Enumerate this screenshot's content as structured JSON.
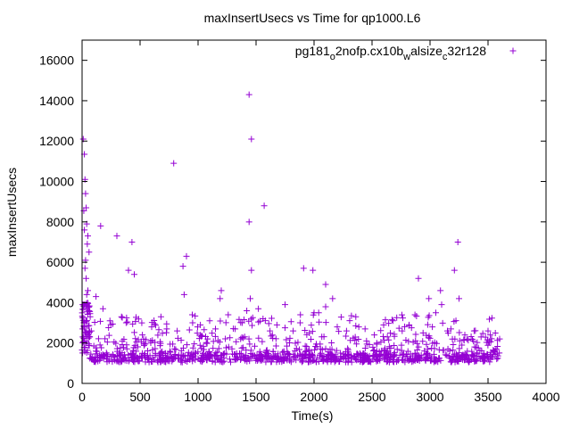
{
  "chart_data": {
    "type": "scatter",
    "title": "maxInsertUsecs vs Time for qp1000.L6",
    "xlabel": "Time(s)",
    "ylabel": "maxInsertUsecs",
    "xlim": [
      0,
      4000
    ],
    "ylim": [
      0,
      17000
    ],
    "xticks": [
      0,
      500,
      1000,
      1500,
      2000,
      2500,
      3000,
      3500,
      4000
    ],
    "yticks": [
      0,
      2000,
      4000,
      6000,
      8000,
      10000,
      12000,
      14000,
      16000
    ],
    "xtick_labels": [
      "0",
      "500",
      "1000",
      "1500",
      "2000",
      "2500",
      "3000",
      "3500",
      "4000"
    ],
    "ytick_labels": [
      "0",
      "2000",
      "4000",
      "6000",
      "8000",
      "10000",
      "12000",
      "14000",
      "16000"
    ],
    "legend_position": "top-right",
    "marker": "plus",
    "color": "#9400d3",
    "series": [
      {
        "name": "pg181_o2nofp.cx10b_walsize_c32r128",
        "legend_parts": [
          {
            "text": "pg181",
            "shift": "base"
          },
          {
            "text": "o",
            "shift": "sub"
          },
          {
            "text": "2nofp.cx10b",
            "shift": "base"
          },
          {
            "text": "w",
            "shift": "sub"
          },
          {
            "text": "alsize",
            "shift": "base"
          },
          {
            "text": "c",
            "shift": "sub"
          },
          {
            "text": "32r128",
            "shift": "base"
          }
        ],
        "points": [
          [
            10,
            12100
          ],
          [
            20,
            11350
          ],
          [
            25,
            10100
          ],
          [
            30,
            9400
          ],
          [
            35,
            8700
          ],
          [
            15,
            8550
          ],
          [
            40,
            7900
          ],
          [
            20,
            7600
          ],
          [
            50,
            7300
          ],
          [
            45,
            6900
          ],
          [
            60,
            6500
          ],
          [
            30,
            6100
          ],
          [
            25,
            5700
          ],
          [
            35,
            5200
          ],
          [
            50,
            4600
          ],
          [
            40,
            4400
          ],
          [
            20,
            3900
          ],
          [
            60,
            3600
          ],
          [
            70,
            3300
          ],
          [
            15,
            3000
          ],
          [
            5,
            2700
          ],
          [
            80,
            2600
          ],
          [
            30,
            2500
          ],
          [
            10,
            2300
          ],
          [
            160,
            7800
          ],
          [
            300,
            7300
          ],
          [
            430,
            7000
          ],
          [
            400,
            5600
          ],
          [
            450,
            5400
          ],
          [
            790,
            10900
          ],
          [
            900,
            6300
          ],
          [
            870,
            5800
          ],
          [
            880,
            4400
          ],
          [
            1440,
            14300
          ],
          [
            1460,
            12100
          ],
          [
            1440,
            8000
          ],
          [
            1570,
            8800
          ],
          [
            1460,
            5600
          ],
          [
            1200,
            4600
          ],
          [
            1190,
            4200
          ],
          [
            1450,
            4200
          ],
          [
            1420,
            3600
          ],
          [
            1520,
            3700
          ],
          [
            1750,
            3900
          ],
          [
            1910,
            5700
          ],
          [
            1990,
            5600
          ],
          [
            2100,
            4900
          ],
          [
            2160,
            4200
          ],
          [
            2000,
            3500
          ],
          [
            2040,
            3500
          ],
          [
            2100,
            3800
          ],
          [
            2900,
            5200
          ],
          [
            2870,
            3400
          ],
          [
            2990,
            4200
          ],
          [
            3090,
            4600
          ],
          [
            3210,
            5600
          ],
          [
            3240,
            7000
          ],
          [
            3250,
            4200
          ],
          [
            3050,
            3500
          ],
          [
            3100,
            3900
          ],
          [
            3150,
            2600
          ],
          [
            3500,
            2600
          ],
          [
            3520,
            2400
          ],
          [
            3600,
            2200
          ],
          [
            3570,
            1700
          ],
          [
            3580,
            1500
          ],
          [
            120,
            4300
          ],
          [
            180,
            3700
          ],
          [
            240,
            3100
          ],
          [
            340,
            3300
          ],
          [
            380,
            3000
          ],
          [
            520,
            2400
          ],
          [
            600,
            2800
          ],
          [
            680,
            3300
          ],
          [
            730,
            2700
          ],
          [
            820,
            2600
          ],
          [
            950,
            3400
          ],
          [
            1020,
            2900
          ],
          [
            1100,
            3100
          ],
          [
            1150,
            2700
          ],
          [
            1260,
            3400
          ],
          [
            1320,
            2700
          ],
          [
            1380,
            3000
          ],
          [
            1560,
            3200
          ],
          [
            1620,
            2600
          ],
          [
            1680,
            2900
          ],
          [
            1820,
            2600
          ],
          [
            1880,
            3000
          ],
          [
            1960,
            2500
          ],
          [
            2200,
            2800
          ],
          [
            2280,
            2600
          ],
          [
            2360,
            3300
          ],
          [
            2440,
            2700
          ],
          [
            2520,
            2400
          ],
          [
            2600,
            2900
          ],
          [
            2680,
            3100
          ],
          [
            2760,
            2600
          ],
          [
            2820,
            2900
          ],
          [
            2940,
            2500
          ],
          [
            3020,
            2800
          ],
          [
            3180,
            2700
          ],
          [
            3300,
            2400
          ],
          [
            3380,
            2600
          ],
          [
            3440,
            2300
          ]
        ]
      }
    ],
    "band": {
      "x_range": [
        60,
        3600
      ],
      "y_range": [
        1050,
        1450
      ],
      "upper_spread": [
        1450,
        2400
      ],
      "count": 650,
      "upper_count": 320,
      "mid_count": 90
    }
  }
}
